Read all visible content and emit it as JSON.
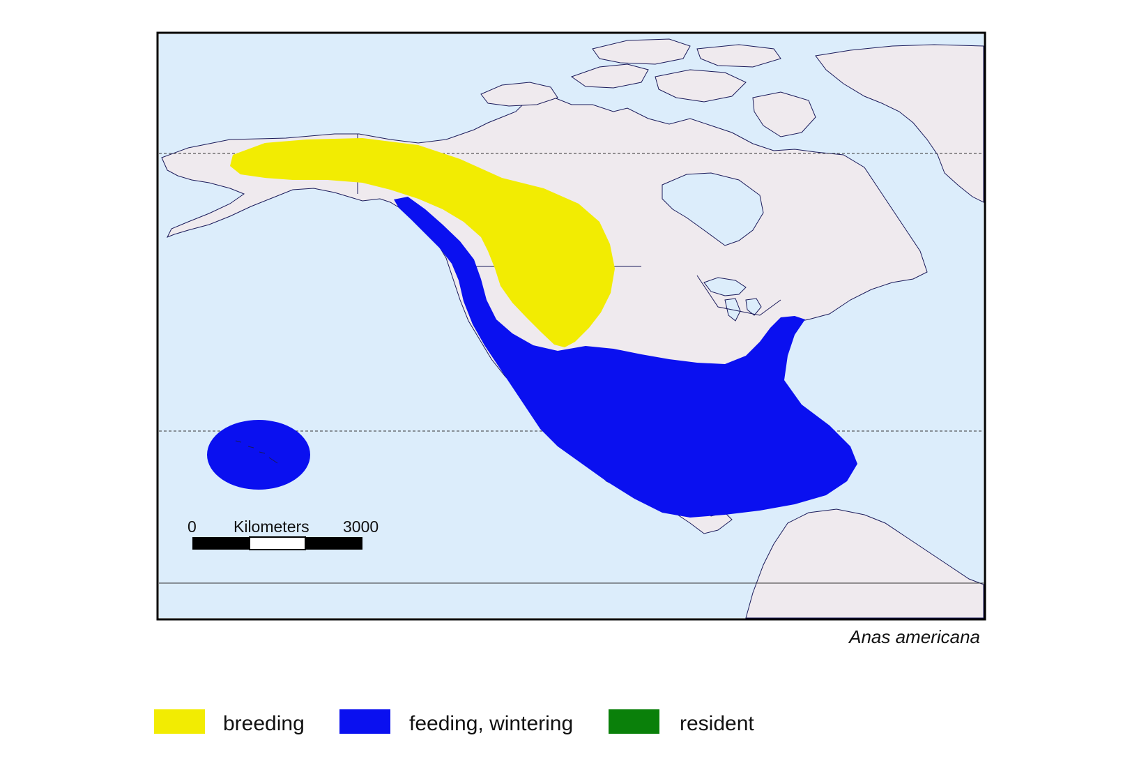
{
  "species_name": "Anas americana",
  "scale_bar": {
    "start_label": "0",
    "unit_label": "Kilometers",
    "end_label": "3000"
  },
  "colors": {
    "ocean": "#dcedfb",
    "land": "#efeaee",
    "breeding": "#f2ec02",
    "feeding_wintering": "#0a10f0",
    "resident": "#0a800a"
  },
  "legend": [
    {
      "label": "breeding",
      "color": "#f2ec02"
    },
    {
      "label": "feeding, wintering",
      "color": "#0a10f0"
    },
    {
      "label": "resident",
      "color": "#0a800a"
    }
  ]
}
